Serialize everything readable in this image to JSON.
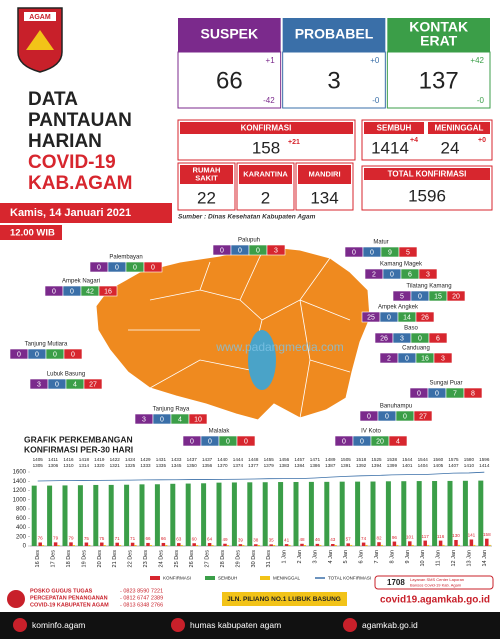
{
  "logo_text": "AGAM",
  "title": [
    "DATA",
    "PANTAUAN",
    "HARIAN",
    "COVID-19",
    "KAB.AGAM"
  ],
  "date": "Kamis, 14 Januari 2021",
  "time": "12.00 WIB",
  "cards": [
    {
      "label_lines": [
        "SUSPEK"
      ],
      "value": 66,
      "up": "+1",
      "down": "-42",
      "color": "#7b2a8c"
    },
    {
      "label_lines": [
        "PROBABEL"
      ],
      "value": 3,
      "up": "+0",
      "down": "-0",
      "color": "#3a6fa8"
    },
    {
      "label_lines": [
        "KONTAK",
        "ERAT"
      ],
      "value": 137,
      "up": "+42",
      "down": "-0",
      "color": "#3b9e48"
    }
  ],
  "konfirmasi": {
    "label": "KONFIRMASI",
    "value": 158,
    "delta": "+21"
  },
  "care": [
    {
      "label_lines": [
        "RUMAH",
        "SAKIT"
      ],
      "value": 22
    },
    {
      "label_lines": [
        "KARANTINA"
      ],
      "value": 2
    },
    {
      "label_lines": [
        "MANDIRI"
      ],
      "value": 134
    }
  ],
  "sembuh": {
    "label": "SEMBUH",
    "value": 1414,
    "delta": "+4"
  },
  "meninggal": {
    "label": "MENINGGAL",
    "value": 24,
    "delta": "+0"
  },
  "total_konfirmasi": {
    "label": "TOTAL KONFIRMASI",
    "value": 1596
  },
  "source": "Sumber : Dinas Kesehatan Kabupaten Agam",
  "watermark": "www.padangmedia.com",
  "map": {
    "cell_colors": [
      "#7b2a8c",
      "#3a6fa8",
      "#3b9e48",
      "#d7262e"
    ],
    "regions": [
      {
        "name": "Palupuh",
        "values": [
          0,
          0,
          0,
          3
        ]
      },
      {
        "name": "Palembayan",
        "values": [
          0,
          0,
          0,
          0
        ]
      },
      {
        "name": "Ampek Nagari",
        "values": [
          0,
          0,
          42,
          16
        ]
      },
      {
        "name": "Tanjung Mutiara",
        "values": [
          0,
          0,
          0,
          0
        ]
      },
      {
        "name": "Lubuk Basung",
        "values": [
          3,
          0,
          4,
          27
        ]
      },
      {
        "name": "Tanjung Raya",
        "values": [
          3,
          0,
          4,
          10
        ]
      },
      {
        "name": "Malalak",
        "values": [
          0,
          0,
          0,
          0
        ]
      },
      {
        "name": "IV Koto",
        "values": [
          0,
          0,
          20,
          4
        ]
      },
      {
        "name": "Banuhampu",
        "values": [
          0,
          0,
          0,
          27
        ]
      },
      {
        "name": "Sungai Puar",
        "values": [
          0,
          0,
          7,
          8
        ]
      },
      {
        "name": "Canduang",
        "values": [
          2,
          0,
          16,
          3
        ]
      },
      {
        "name": "Baso",
        "values": [
          26,
          3,
          0,
          6
        ]
      },
      {
        "name": "Ampek Angkek",
        "values": [
          25,
          0,
          14,
          26
        ]
      },
      {
        "name": "Tilatang Kamang",
        "values": [
          5,
          0,
          15,
          20
        ]
      },
      {
        "name": "Kamang Magek",
        "values": [
          2,
          0,
          6,
          3
        ]
      },
      {
        "name": "Matur",
        "values": [
          0,
          0,
          9,
          5
        ]
      }
    ]
  },
  "chart_data": {
    "type": "bar",
    "title": [
      "GRAFIK PERKEMBANGAN",
      "KONFIRMASI PER-30 HARI"
    ],
    "categories": [
      "16 Des",
      "17 Des",
      "18 Des",
      "19 Des",
      "20 Des",
      "21 Des",
      "22 Des",
      "23 Des",
      "24 Des",
      "25 Des",
      "26 Des",
      "27 Des",
      "28 Des",
      "29 Des",
      "30 Des",
      "31 Des",
      "1 Jan",
      "2 Jan",
      "3 Jan",
      "4 Jan",
      "5 Jan",
      "6 Jan",
      "7 Jan",
      "8 Jan",
      "9 Jan",
      "10 Jan",
      "11 Jan",
      "12 Jan",
      "13 Jan",
      "14 Jan"
    ],
    "series": [
      {
        "name": "KONFIRMASI",
        "color": "#d7262e",
        "values": [
          76,
          79,
          79,
          75,
          75,
          71,
          71,
          66,
          66,
          63,
          60,
          64,
          49,
          39,
          38,
          35,
          41,
          48,
          46,
          43,
          57,
          74,
          82,
          96,
          101,
          117,
          116,
          130,
          141,
          158
        ]
      },
      {
        "name": "SEMBUH",
        "color": "#3b9e48",
        "values": [
          1305,
          1306,
          1310,
          1314,
          1320,
          1321,
          1325,
          1333,
          1335,
          1345,
          1350,
          1356,
          1370,
          1374,
          1377,
          1379,
          1383,
          1384,
          1386,
          1387,
          1391,
          1392,
          1394,
          1399,
          1401,
          1404,
          1405,
          1407,
          1410,
          1414
        ]
      },
      {
        "name": "MENINGGAL",
        "color": "#f2c318",
        "values": [
          22,
          22,
          22,
          22,
          22,
          22,
          22,
          22,
          22,
          22,
          22,
          22,
          22,
          22,
          22,
          22,
          22,
          22,
          22,
          22,
          23,
          23,
          23,
          23,
          23,
          23,
          24,
          24,
          24,
          24
        ]
      },
      {
        "name": "TOTAL KONFIRMASI",
        "color": "#3a6fa8",
        "type": "line",
        "values": [
          1405,
          1411,
          1416,
          1418,
          1419,
          1422,
          1424,
          1429,
          1431,
          1433,
          1437,
          1437,
          1440,
          1444,
          1448,
          1455,
          1456,
          1457,
          1471,
          1489,
          1505,
          1518,
          1525,
          1538,
          1544,
          1544,
          1560,
          1575,
          1580,
          1596
        ]
      }
    ],
    "ylim": [
      0,
      1600
    ],
    "yticks": [
      0,
      200,
      400,
      600,
      800,
      1000,
      1200,
      1400,
      1600
    ],
    "grid": false
  },
  "footer": {
    "posko": [
      "POSKO GUGUS TUGAS",
      "PERCEPATAN PENANGANAN",
      "COVID-19 KABUPATEN AGAM"
    ],
    "phones": [
      "- 0823 8590 7221",
      "- 0812 6747 2389",
      "- 0813 6348 2766"
    ],
    "address": "JLN. PILIANG NO.1 LUBUK BASUNG",
    "sms_code": "1708",
    "sms_text": [
      "Layanan SMS Center Laporan",
      "Bansos Covid-19 Kab. Agam"
    ],
    "website": "covid19.agamkab.go.id",
    "social": [
      "kominfo.agam",
      "humas kabupaten agam",
      "agamkab.go.id"
    ]
  }
}
